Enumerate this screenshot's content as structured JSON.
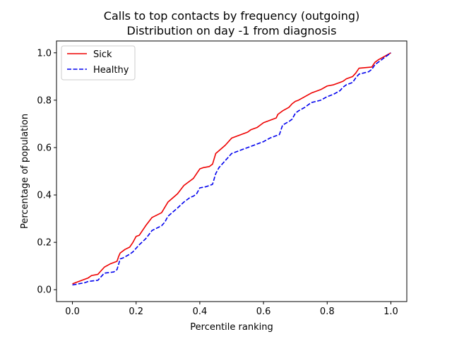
{
  "chart_data": {
    "type": "line",
    "title": "Calls to top contacts by frequency (outgoing)",
    "subtitle": "Distribution on day -1 from diagnosis",
    "xlabel": "Percentile ranking",
    "ylabel": "Percentage of population",
    "xlim": [
      -0.05,
      1.05
    ],
    "ylim": [
      -0.05,
      1.05
    ],
    "xticks": [
      0.0,
      0.2,
      0.4,
      0.6,
      0.8,
      1.0
    ],
    "yticks": [
      0.0,
      0.2,
      0.4,
      0.6,
      0.8,
      1.0
    ],
    "tick_format": "0.1f",
    "grid": false,
    "legend_position": "top-left",
    "series": [
      {
        "name": "Sick",
        "color": "#ee0000",
        "style": "solid",
        "x": [
          0.0,
          0.02,
          0.05,
          0.06,
          0.08,
          0.09,
          0.1,
          0.12,
          0.14,
          0.145,
          0.15,
          0.165,
          0.18,
          0.19,
          0.2,
          0.21,
          0.23,
          0.25,
          0.28,
          0.3,
          0.33,
          0.35,
          0.38,
          0.39,
          0.4,
          0.41,
          0.43,
          0.44,
          0.45,
          0.48,
          0.5,
          0.55,
          0.56,
          0.58,
          0.59,
          0.6,
          0.62,
          0.64,
          0.645,
          0.66,
          0.68,
          0.69,
          0.7,
          0.71,
          0.73,
          0.75,
          0.78,
          0.8,
          0.82,
          0.84,
          0.85,
          0.86,
          0.88,
          0.89,
          0.9,
          0.94,
          0.95,
          0.96,
          0.98,
          1.0
        ],
        "y": [
          0.025,
          0.035,
          0.05,
          0.06,
          0.065,
          0.08,
          0.095,
          0.11,
          0.12,
          0.14,
          0.155,
          0.17,
          0.18,
          0.2,
          0.225,
          0.23,
          0.27,
          0.305,
          0.325,
          0.37,
          0.405,
          0.44,
          0.47,
          0.49,
          0.51,
          0.515,
          0.52,
          0.53,
          0.575,
          0.61,
          0.64,
          0.665,
          0.675,
          0.685,
          0.695,
          0.705,
          0.715,
          0.725,
          0.74,
          0.755,
          0.77,
          0.785,
          0.795,
          0.8,
          0.815,
          0.83,
          0.845,
          0.86,
          0.865,
          0.875,
          0.88,
          0.89,
          0.9,
          0.915,
          0.935,
          0.94,
          0.96,
          0.97,
          0.985,
          1.0
        ]
      },
      {
        "name": "Healthy",
        "color": "#0000ee",
        "style": "dashed",
        "x": [
          0.0,
          0.02,
          0.04,
          0.05,
          0.08,
          0.09,
          0.1,
          0.13,
          0.14,
          0.15,
          0.16,
          0.18,
          0.19,
          0.2,
          0.21,
          0.23,
          0.25,
          0.28,
          0.29,
          0.3,
          0.33,
          0.35,
          0.37,
          0.38,
          0.39,
          0.4,
          0.42,
          0.44,
          0.45,
          0.46,
          0.5,
          0.55,
          0.58,
          0.6,
          0.62,
          0.64,
          0.65,
          0.66,
          0.68,
          0.69,
          0.7,
          0.71,
          0.73,
          0.75,
          0.78,
          0.8,
          0.82,
          0.84,
          0.85,
          0.86,
          0.88,
          0.89,
          0.9,
          0.93,
          0.94,
          0.95,
          0.97,
          1.0
        ],
        "y": [
          0.02,
          0.025,
          0.03,
          0.035,
          0.04,
          0.055,
          0.07,
          0.075,
          0.085,
          0.13,
          0.135,
          0.15,
          0.16,
          0.175,
          0.19,
          0.215,
          0.25,
          0.27,
          0.285,
          0.31,
          0.345,
          0.37,
          0.39,
          0.395,
          0.405,
          0.43,
          0.435,
          0.445,
          0.49,
          0.515,
          0.575,
          0.6,
          0.615,
          0.625,
          0.64,
          0.65,
          0.655,
          0.695,
          0.71,
          0.72,
          0.745,
          0.755,
          0.77,
          0.79,
          0.8,
          0.815,
          0.825,
          0.84,
          0.855,
          0.865,
          0.875,
          0.895,
          0.91,
          0.92,
          0.93,
          0.95,
          0.97,
          1.0
        ]
      }
    ]
  }
}
